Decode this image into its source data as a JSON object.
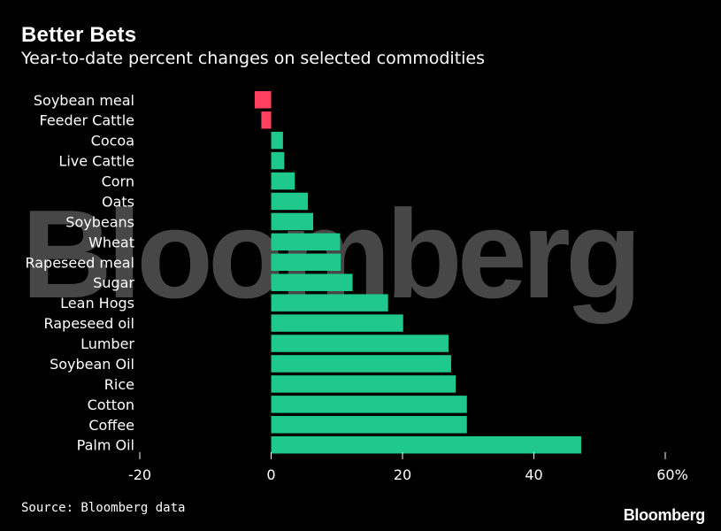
{
  "header": {
    "title": "Better Bets",
    "subtitle": "Year-to-date percent changes on selected commodities"
  },
  "footer": {
    "source": "Source: Bloomberg data",
    "logo": "Bloomberg"
  },
  "watermark": "Bloomberg",
  "colors": {
    "positive": "#1ec98b",
    "negative": "#ff4060",
    "background": "#000000",
    "text": "#ffffff"
  },
  "chart_data": {
    "type": "bar",
    "orientation": "horizontal",
    "title": "Better Bets",
    "subtitle": "Year-to-date percent changes on selected commodities",
    "categories": [
      "Soybean meal",
      "Feeder Cattle",
      "Cocoa",
      "Live Cattle",
      "Corn",
      "Oats",
      "Soybeans",
      "Wheat",
      "Rapeseed meal",
      "Sugar",
      "Lean Hogs",
      "Rapeseed oil",
      "Lumber",
      "Soybean Oil",
      "Rice",
      "Cotton",
      "Coffee",
      "Palm Oil"
    ],
    "values": [
      -2.5,
      -1.5,
      1.8,
      2.0,
      3.6,
      5.6,
      6.4,
      10.5,
      10.6,
      12.4,
      17.8,
      20.1,
      27.0,
      27.4,
      28.1,
      29.8,
      29.8,
      47.2
    ],
    "xlim": [
      -20,
      60
    ],
    "xticks": [
      "-20",
      "0",
      "20",
      "40",
      "60%"
    ],
    "xtick_values": [
      -20,
      0,
      20,
      40,
      60
    ],
    "grid": false,
    "legend": "none"
  }
}
